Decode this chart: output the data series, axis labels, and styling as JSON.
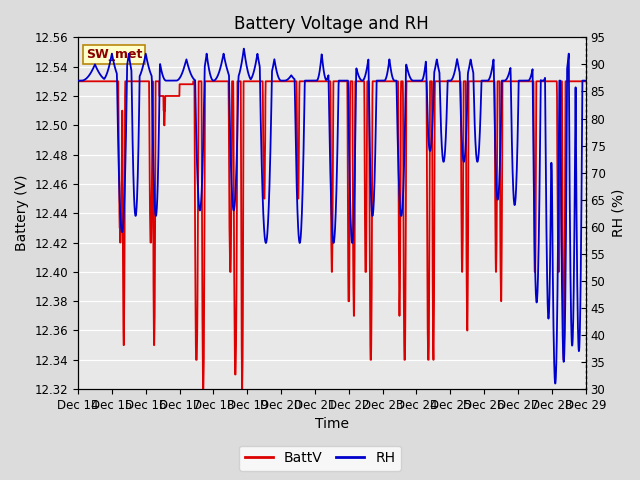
{
  "title": "Battery Voltage and RH",
  "xlabel": "Time",
  "ylabel_left": "Battery (V)",
  "ylabel_right": "RH (%)",
  "label_box": "SW_met",
  "ylim_left": [
    12.32,
    12.56
  ],
  "ylim_right": [
    30,
    95
  ],
  "yticks_left": [
    12.32,
    12.34,
    12.36,
    12.38,
    12.4,
    12.42,
    12.44,
    12.46,
    12.48,
    12.5,
    12.52,
    12.54,
    12.56
  ],
  "yticks_right": [
    30,
    35,
    40,
    45,
    50,
    55,
    60,
    65,
    70,
    75,
    80,
    85,
    90,
    95
  ],
  "x_tick_labels": [
    "Dec 14",
    "Dec 15",
    "Dec 16",
    "Dec 17",
    "Dec 18",
    "Dec 19",
    "Dec 20",
    "Dec 21",
    "Dec 22",
    "Dec 23",
    "Dec 24",
    "Dec 25",
    "Dec 26",
    "Dec 27",
    "Dec 28",
    "Dec 29"
  ],
  "background_color": "#dcdcdc",
  "plot_bg_color": "#e8e8e8",
  "batt_color": "#dd0000",
  "rh_color": "#0000cc",
  "legend_batt": "BattV",
  "legend_rh": "RH",
  "title_fontsize": 12,
  "axis_fontsize": 10,
  "tick_fontsize": 8.5,
  "legend_fontsize": 10,
  "figwidth": 6.4,
  "figheight": 4.8,
  "dpi": 100
}
